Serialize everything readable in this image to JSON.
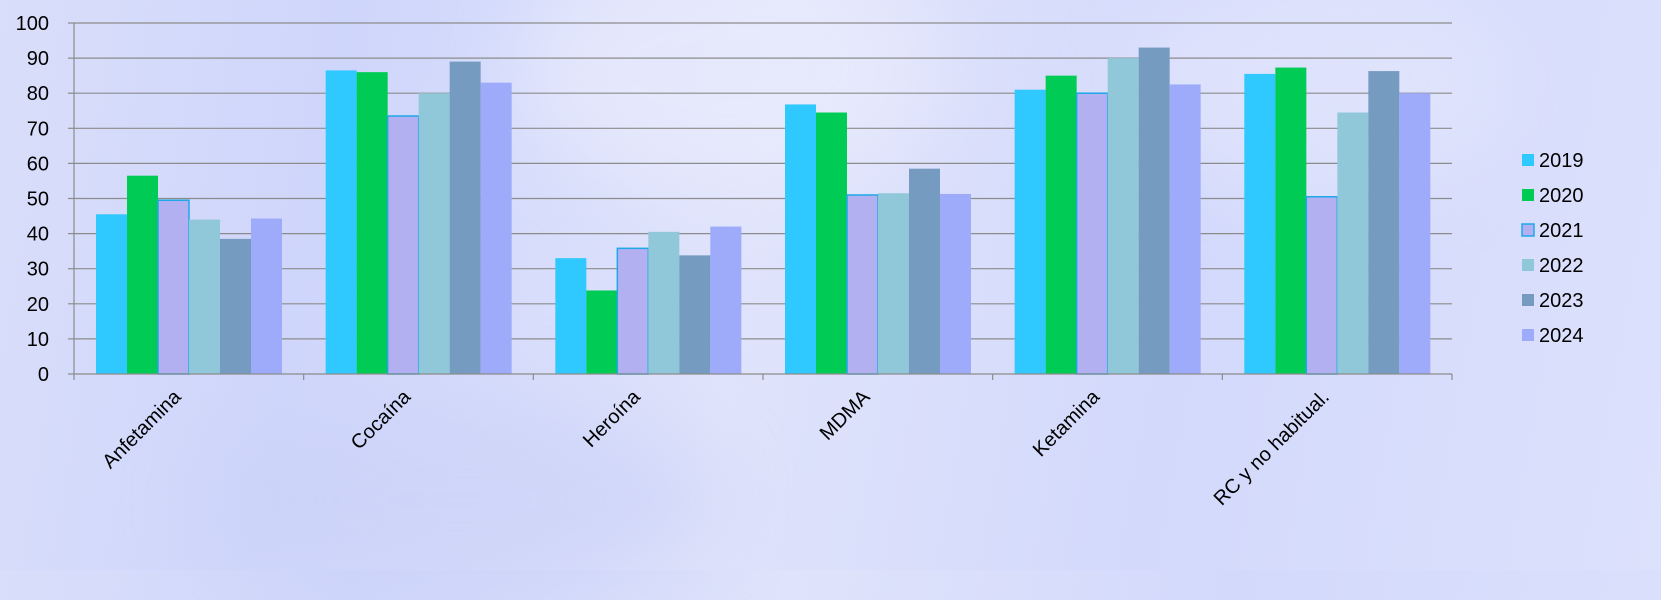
{
  "chart_data": {
    "type": "bar",
    "title": "",
    "xlabel": "",
    "ylabel": "",
    "ylim": [
      0,
      100
    ],
    "yticks": [
      0,
      10,
      20,
      30,
      40,
      50,
      60,
      70,
      80,
      90,
      100
    ],
    "grid": true,
    "legend_position": "right",
    "categories": [
      "Anfetamina",
      "Cocaína",
      "Heroína",
      "MDMA",
      "Ketamina",
      "RC y no habitual."
    ],
    "series": [
      {
        "name": "2019",
        "color": "#2fc8ff",
        "values": [
          45.5,
          86.5,
          33,
          76.8,
          81,
          85.5
        ]
      },
      {
        "name": "2020",
        "color": "#00cc55",
        "values": [
          56.5,
          86,
          23.8,
          74.5,
          85,
          87.3
        ]
      },
      {
        "name": "2021",
        "color": "#b3b0f2",
        "border": "#1ea8e8",
        "values": [
          49.5,
          73.5,
          35.8,
          51,
          80,
          50.5
        ]
      },
      {
        "name": "2022",
        "color": "#90c8da",
        "values": [
          44,
          80,
          40.5,
          51.5,
          90,
          74.5
        ]
      },
      {
        "name": "2023",
        "color": "#759cc0",
        "values": [
          38.5,
          89,
          33.8,
          58.5,
          93,
          86.3
        ]
      },
      {
        "name": "2024",
        "color": "#9eabfb",
        "values": [
          44.3,
          83,
          42,
          51.3,
          82.5,
          80
        ]
      }
    ]
  }
}
